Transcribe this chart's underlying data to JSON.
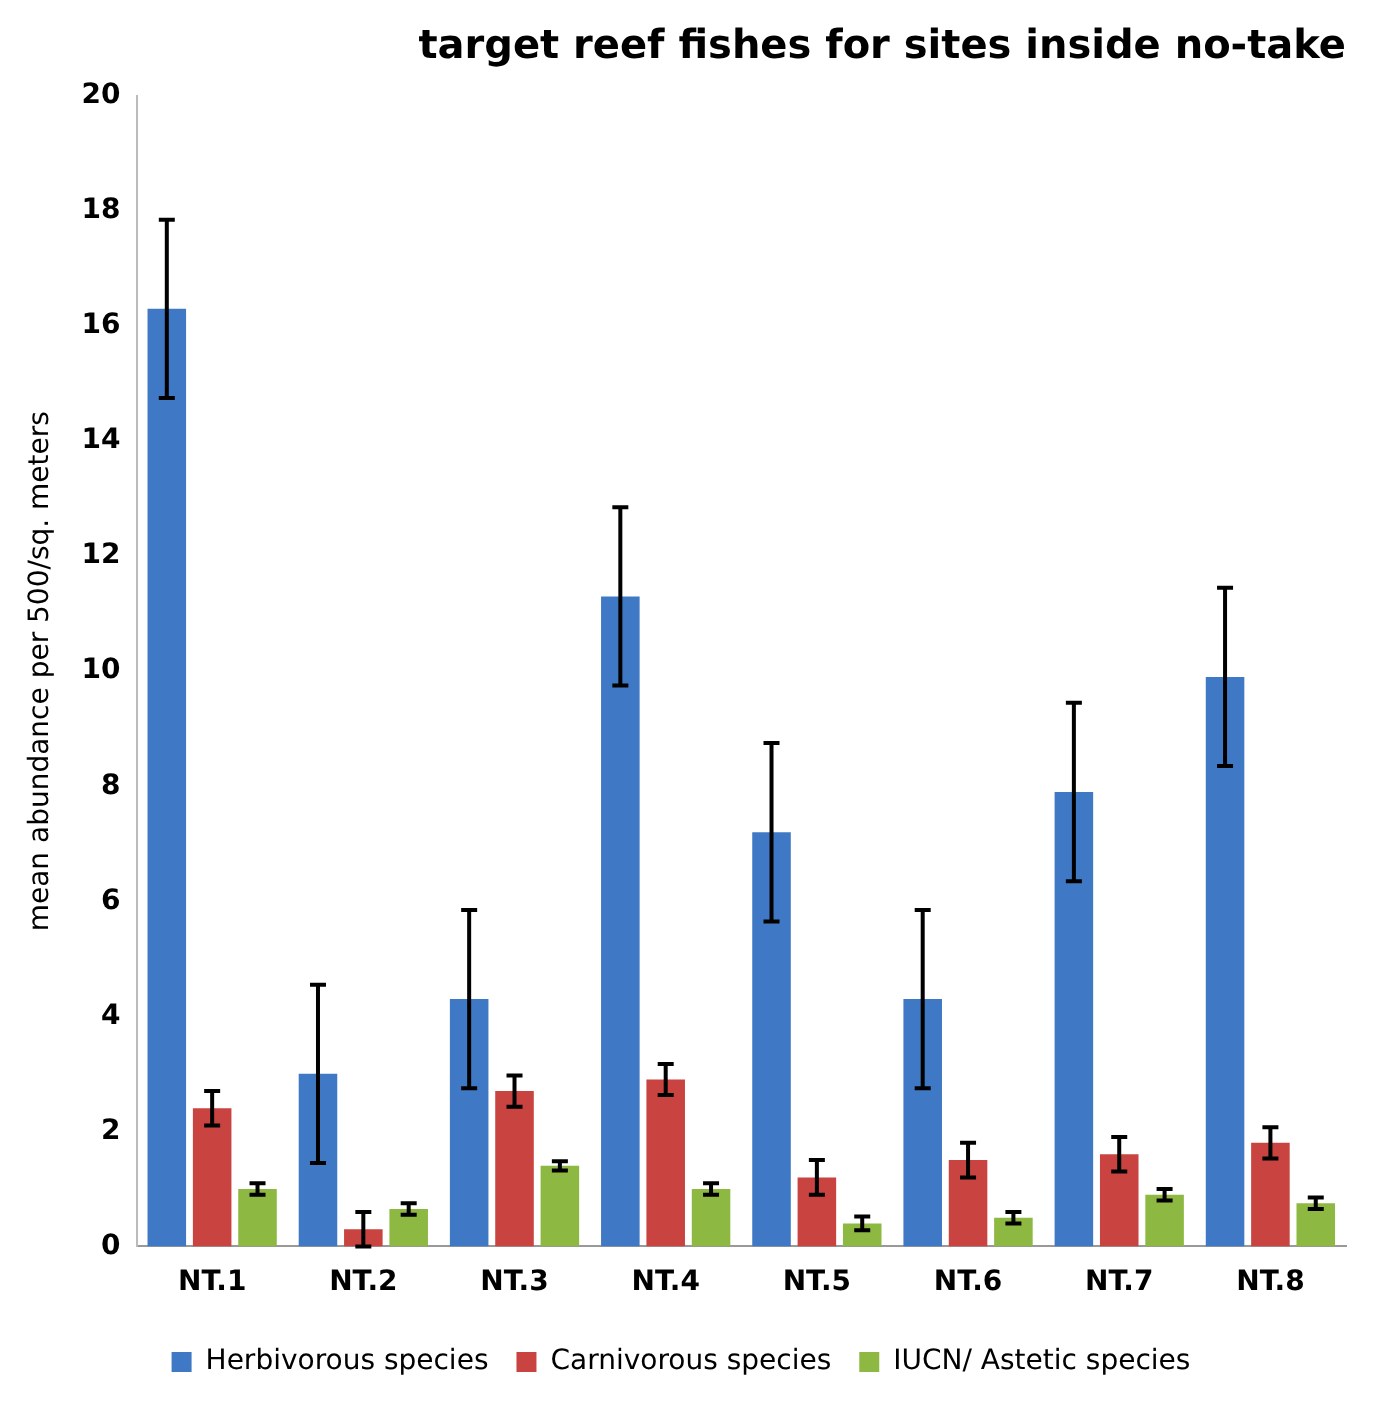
{
  "chart_data": {
    "type": "bar",
    "title": "target reef fishes for sites inside no-take",
    "ylabel": "mean abundance per 500/sq. meters",
    "categories": [
      "NT.1",
      "NT.2",
      "NT.3",
      "NT.4",
      "NT.5",
      "NT.6",
      "NT.7",
      "NT.8"
    ],
    "series": [
      {
        "name": "Herbivorous species",
        "color": "#3f78c4",
        "values": [
          16.3,
          3.0,
          4.3,
          11.3,
          7.2,
          4.3,
          7.9,
          9.9
        ],
        "errors": [
          1.55,
          1.55,
          1.55,
          1.55,
          1.55,
          1.55,
          1.55,
          1.55
        ]
      },
      {
        "name": "Carnivorous species",
        "color": "#c94340",
        "values": [
          2.4,
          0.3,
          2.7,
          2.9,
          1.2,
          1.5,
          1.6,
          1.8
        ],
        "errors": [
          0.3,
          0.3,
          0.27,
          0.27,
          0.3,
          0.3,
          0.3,
          0.27
        ]
      },
      {
        "name": "IUCN/ Astetic species",
        "color": "#8db842",
        "values": [
          1.0,
          0.65,
          1.4,
          1.0,
          0.4,
          0.5,
          0.9,
          0.75
        ],
        "errors": [
          0.1,
          0.1,
          0.08,
          0.1,
          0.12,
          0.1,
          0.1,
          0.1
        ]
      }
    ],
    "ylim": [
      0,
      20
    ],
    "yticks": [
      0,
      2,
      4,
      6,
      8,
      10,
      12,
      14,
      16,
      18,
      20
    ],
    "grid": false,
    "legend": "bottom"
  }
}
